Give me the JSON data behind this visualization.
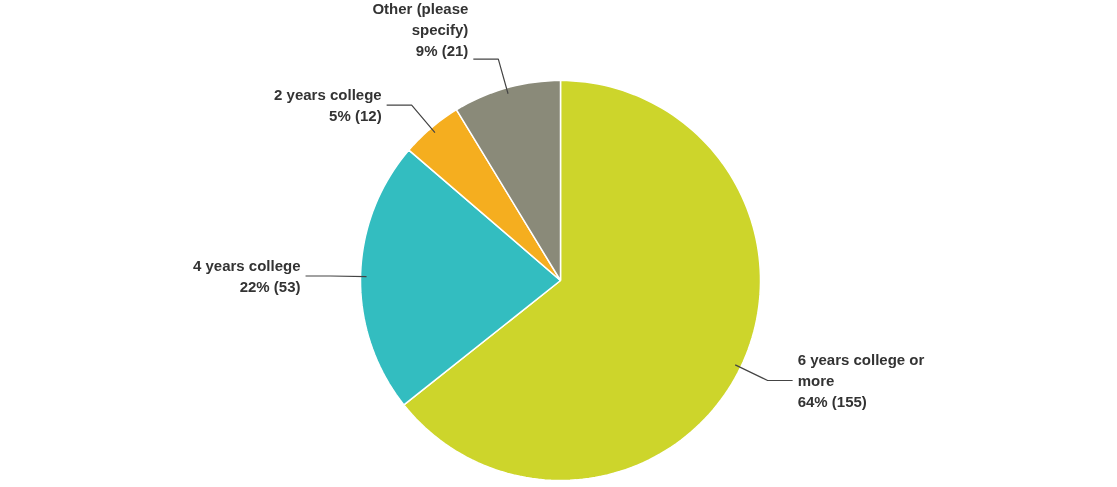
{
  "chart_data": {
    "type": "pie",
    "categories": [
      "6 years college or more",
      "4 years college",
      "2 years college",
      "Other (please specify)"
    ],
    "values": [
      155,
      53,
      12,
      21
    ],
    "value_labels": [
      "64% (155)",
      "22% (53)",
      "5% (12)",
      "9% (21)"
    ],
    "colors": [
      "#cdd52b",
      "#33bdc0",
      "#f5ae1f",
      "#8a8a79"
    ]
  }
}
